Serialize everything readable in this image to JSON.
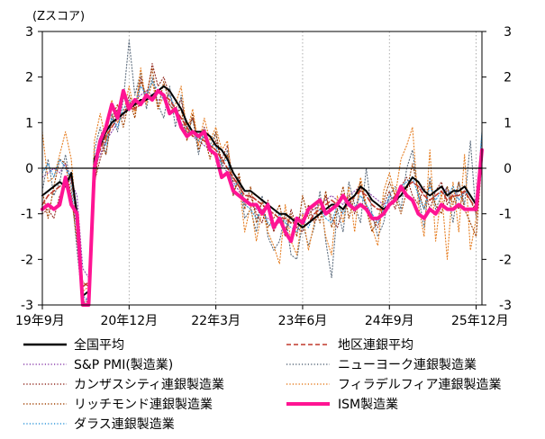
{
  "chart_data": {
    "type": "line",
    "unit_label": "(Zスコア)",
    "ylim": [
      -3,
      3
    ],
    "y_ticks": [
      -3,
      -2,
      -1,
      0,
      1,
      2,
      3
    ],
    "x_ticks": [
      "19年9月",
      "20年12月",
      "22年3月",
      "23年6月",
      "24年9月",
      "25年12月"
    ],
    "x_tick_month_index": [
      0,
      15,
      30,
      45,
      60,
      75
    ],
    "grid": "vertical-dotted",
    "legend_placement": "bottom",
    "series": [
      {
        "name": "全国平均",
        "color": "#000000",
        "style": "solid",
        "width": 2,
        "values": [
          -0.6,
          -0.5,
          -0.4,
          -0.3,
          -0.4,
          -0.1,
          -1.0,
          -2.8,
          -2.7,
          0.2,
          0.5,
          0.8,
          1.0,
          1.1,
          1.2,
          1.3,
          1.4,
          1.5,
          1.5,
          1.6,
          1.7,
          1.8,
          1.7,
          1.5,
          1.3,
          1.0,
          0.8,
          0.8,
          0.8,
          0.7,
          0.5,
          0.4,
          0.2,
          -0.1,
          -0.3,
          -0.5,
          -0.5,
          -0.6,
          -0.7,
          -0.8,
          -0.9,
          -1.0,
          -1.0,
          -1.1,
          -1.2,
          -1.3,
          -1.2,
          -1.1,
          -1.0,
          -0.9,
          -0.8,
          -0.8,
          -0.9,
          -0.7,
          -0.6,
          -0.4,
          -0.5,
          -0.7,
          -0.8,
          -0.9,
          -0.8,
          -0.7,
          -0.6,
          -0.4,
          -0.2,
          -0.3,
          -0.5,
          -0.6,
          -0.5,
          -0.4,
          -0.6,
          -0.5,
          -0.5,
          -0.4,
          -0.6,
          -0.8,
          0.3
        ]
      },
      {
        "name": "地区連銀平均",
        "color": "#c0392b",
        "style": "dash",
        "width": 1.6,
        "values": [
          -0.8,
          -0.6,
          -0.5,
          -0.4,
          -0.3,
          -0.2,
          -1.1,
          -2.6,
          -2.5,
          0.1,
          0.4,
          0.7,
          0.9,
          1.1,
          1.2,
          1.3,
          1.3,
          1.4,
          1.5,
          1.6,
          1.7,
          1.6,
          1.5,
          1.3,
          1.1,
          0.9,
          0.7,
          0.7,
          0.6,
          0.5,
          0.4,
          0.2,
          0.0,
          -0.2,
          -0.4,
          -0.6,
          -0.6,
          -0.7,
          -0.8,
          -0.9,
          -1.0,
          -1.1,
          -1.1,
          -1.2,
          -1.2,
          -1.3,
          -1.2,
          -1.0,
          -0.9,
          -0.8,
          -0.7,
          -0.8,
          -0.9,
          -0.8,
          -0.6,
          -0.5,
          -0.6,
          -0.8,
          -0.9,
          -0.9,
          -0.8,
          -0.6,
          -0.5,
          -0.4,
          -0.3,
          -0.4,
          -0.6,
          -0.7,
          -0.6,
          -0.5,
          -0.7,
          -0.6,
          -0.6,
          -0.5,
          -0.7,
          -0.9,
          0.2
        ]
      },
      {
        "name": "S&P PMI(製造業)",
        "color": "#8e44ad",
        "style": "dot",
        "width": 1.1,
        "values": [
          -0.2,
          -0.1,
          0.0,
          -0.1,
          0.1,
          -0.3,
          -0.6,
          -2.2,
          -2.4,
          0.0,
          0.3,
          0.6,
          0.8,
          1.0,
          1.2,
          1.4,
          1.5,
          1.6,
          1.7,
          1.6,
          1.5,
          1.5,
          1.4,
          1.2,
          1.0,
          0.8,
          0.7,
          0.6,
          0.5,
          0.4,
          0.3,
          0.1,
          -0.1,
          -0.3,
          -0.5,
          -0.7,
          -0.8,
          -0.9,
          -1.0,
          -1.1,
          -1.2,
          -1.2,
          -1.3,
          -1.2,
          -1.1,
          -1.0,
          -1.0,
          -0.9,
          -0.8,
          -0.7,
          -0.6,
          -0.7,
          -0.8,
          -0.6,
          -0.5,
          -0.4,
          -0.5,
          -0.6,
          -0.7,
          -0.8,
          -0.7,
          -0.6,
          -0.5,
          -0.4,
          -0.3,
          -0.4,
          -0.5,
          -0.6,
          -0.5,
          -0.4,
          -0.5,
          -0.6,
          -0.5,
          -0.4,
          -0.6,
          -0.8,
          0.2
        ]
      },
      {
        "name": "ニューヨーク連銀製造業",
        "color": "#5d6d7e",
        "style": "dot",
        "width": 1.1,
        "values": [
          -0.5,
          0.2,
          -0.6,
          -0.3,
          0.3,
          -0.4,
          -1.8,
          -3.0,
          -2.8,
          0.4,
          0.9,
          0.3,
          1.2,
          0.8,
          1.5,
          2.8,
          1.6,
          2.1,
          1.3,
          2.0,
          1.4,
          1.1,
          1.8,
          0.9,
          1.6,
          0.7,
          1.1,
          0.3,
          0.9,
          0.5,
          0.8,
          0.0,
          0.4,
          -0.6,
          -0.2,
          -1.1,
          -0.9,
          -1.4,
          -0.6,
          -1.5,
          -1.8,
          -1.6,
          -1.0,
          -1.9,
          -2.0,
          -1.2,
          -1.7,
          -1.3,
          -0.5,
          -1.6,
          -2.4,
          -0.9,
          -1.4,
          -0.3,
          -0.8,
          -1.2,
          0.0,
          -1.0,
          -1.5,
          -1.2,
          -0.6,
          -0.4,
          -0.9,
          0.0,
          0.4,
          -0.6,
          -1.3,
          -0.2,
          -0.9,
          -0.6,
          -0.4,
          -1.2,
          -0.3,
          -0.8,
          0.6,
          -1.1,
          0.8
        ]
      },
      {
        "name": "カンザスシティ連銀製造業",
        "color": "#922b21",
        "style": "dot",
        "width": 1.1,
        "values": [
          -1.0,
          -0.9,
          -1.1,
          -0.6,
          -0.4,
          -0.7,
          -1.3,
          -3.0,
          -2.9,
          -0.3,
          0.2,
          0.6,
          1.0,
          1.3,
          1.1,
          1.6,
          1.3,
          2.0,
          1.5,
          2.3,
          1.8,
          2.0,
          1.6,
          1.3,
          1.5,
          0.9,
          1.1,
          0.6,
          0.9,
          0.4,
          0.6,
          0.2,
          0.5,
          -0.3,
          -0.2,
          -0.8,
          -0.6,
          -1.0,
          -1.2,
          -0.7,
          -1.4,
          -1.1,
          -1.5,
          -0.9,
          -1.3,
          -1.4,
          -0.8,
          -1.2,
          -1.0,
          -0.6,
          -1.1,
          -1.3,
          -0.9,
          -0.6,
          -1.0,
          -0.4,
          -0.8,
          -1.1,
          -1.3,
          -0.8,
          -0.5,
          -0.9,
          -0.4,
          -0.2,
          -0.6,
          -0.8,
          -0.4,
          -0.9,
          -0.5,
          -0.3,
          -0.8,
          -0.6,
          -0.9,
          -0.5,
          -0.7,
          -1.0,
          0.3
        ]
      },
      {
        "name": "フィラデルフィア連銀製造業",
        "color": "#e67e22",
        "style": "dot",
        "width": 1.1,
        "values": [
          0.8,
          -0.3,
          -0.2,
          0.3,
          0.8,
          0.2,
          -1.2,
          -2.7,
          -2.6,
          0.6,
          1.2,
          0.6,
          1.5,
          1.0,
          1.2,
          1.8,
          1.2,
          2.2,
          1.4,
          1.9,
          1.3,
          1.6,
          1.2,
          1.4,
          1.8,
          0.8,
          1.3,
          0.5,
          1.1,
          0.6,
          0.9,
          0.4,
          0.6,
          -0.5,
          -0.3,
          -1.4,
          -0.8,
          -1.6,
          -0.9,
          -1.4,
          -1.7,
          -2.1,
          -0.8,
          -1.6,
          -1.9,
          -1.0,
          -1.8,
          -1.2,
          -0.7,
          -1.5,
          -1.9,
          -0.6,
          -1.2,
          -0.4,
          -1.4,
          -0.2,
          -0.8,
          -1.3,
          -1.7,
          -0.5,
          -0.1,
          -0.6,
          0.2,
          0.5,
          0.9,
          -0.8,
          -1.5,
          0.4,
          -1.6,
          -0.5,
          -2.0,
          -0.3,
          -1.4,
          0.3,
          -1.8,
          -1.1,
          0.4
        ]
      },
      {
        "name": "リッチモンド連銀製造業",
        "color": "#a04000",
        "style": "dot",
        "width": 1.1,
        "values": [
          -0.5,
          -1.1,
          -0.4,
          0.2,
          0.1,
          -0.6,
          -1.6,
          -2.5,
          -2.6,
          -0.4,
          0.6,
          0.3,
          1.1,
          1.4,
          0.9,
          1.5,
          1.1,
          1.9,
          1.6,
          2.2,
          1.3,
          1.9,
          1.4,
          1.2,
          1.3,
          0.6,
          1.2,
          0.4,
          0.7,
          0.2,
          0.8,
          0.1,
          0.3,
          -0.6,
          -0.1,
          -0.9,
          -0.4,
          -1.2,
          -0.7,
          -1.3,
          -1.1,
          -0.8,
          -1.4,
          -1.0,
          -1.5,
          -0.6,
          -1.1,
          -0.8,
          -1.2,
          -0.5,
          -1.3,
          -0.9,
          -0.4,
          -1.1,
          -0.6,
          -0.3,
          -0.9,
          -1.4,
          -1.1,
          -0.7,
          -0.3,
          -0.6,
          -1.0,
          -0.5,
          0.1,
          -0.5,
          -0.9,
          -0.3,
          -0.8,
          -1.0,
          -0.4,
          -0.8,
          -0.3,
          -0.9,
          -1.2,
          -1.5,
          0.2
        ]
      },
      {
        "name": "ISM製造業",
        "color": "#ff1493",
        "style": "solid",
        "width": 4,
        "values": [
          -0.9,
          -0.8,
          -0.9,
          -0.8,
          -0.2,
          -0.8,
          -1.0,
          -3.0,
          -3.0,
          0.0,
          0.6,
          0.9,
          1.4,
          1.1,
          1.7,
          1.3,
          1.5,
          1.4,
          1.6,
          1.5,
          1.7,
          1.6,
          1.2,
          1.3,
          0.9,
          0.7,
          0.8,
          0.7,
          0.8,
          0.4,
          0.3,
          -0.2,
          -0.1,
          -0.5,
          -0.6,
          -0.7,
          -0.8,
          -0.8,
          -1.0,
          -0.8,
          -1.3,
          -1.1,
          -1.4,
          -1.6,
          -1.1,
          -1.2,
          -0.9,
          -0.8,
          -0.7,
          -1.0,
          -0.9,
          -0.8,
          -0.6,
          -0.8,
          -0.9,
          -0.8,
          -0.9,
          -1.1,
          -1.1,
          -1.0,
          -0.8,
          -0.7,
          -0.4,
          -0.6,
          -0.7,
          -1.0,
          -1.1,
          -0.9,
          -1.0,
          -0.8,
          -0.9,
          -0.9,
          -0.8,
          -0.9,
          -0.9,
          -0.9,
          0.4
        ]
      },
      {
        "name": "ダラス連銀製造業",
        "color": "#3498db",
        "style": "dot",
        "width": 1.1,
        "values": [
          -0.1,
          0.1,
          -0.2,
          0.2,
          0.0,
          -0.2,
          -1.4,
          -2.8,
          -2.9,
          0.2,
          0.7,
          0.5,
          1.1,
          0.9,
          1.3,
          1.5,
          1.4,
          1.8,
          1.6,
          1.9,
          1.7,
          1.5,
          1.6,
          1.3,
          1.1,
          0.9,
          0.8,
          0.6,
          0.7,
          0.5,
          0.5,
          0.1,
          0.2,
          -0.4,
          -0.3,
          -0.8,
          -0.9,
          -1.1,
          -0.9,
          -1.2,
          -1.3,
          -1.0,
          -1.2,
          -1.3,
          -1.4,
          -1.1,
          -1.3,
          -1.0,
          -0.9,
          -1.1,
          -1.2,
          -0.8,
          -1.0,
          -0.7,
          -0.9,
          -0.6,
          -0.8,
          -1.0,
          -1.2,
          -0.9,
          -0.6,
          -0.7,
          -0.4,
          -0.3,
          -0.2,
          -0.6,
          -0.9,
          -0.4,
          -0.7,
          -0.5,
          -0.6,
          -0.4,
          -0.7,
          -0.5,
          -0.6,
          -0.8,
          0.8
        ]
      }
    ]
  }
}
